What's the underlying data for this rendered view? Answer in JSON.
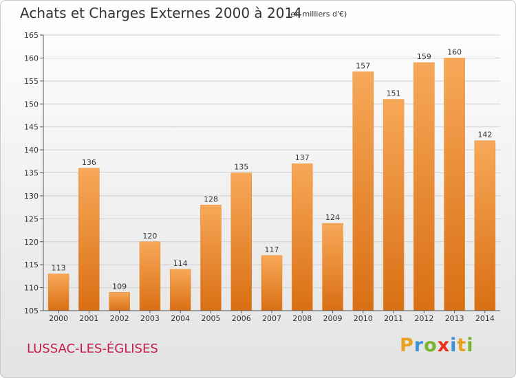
{
  "header": {
    "title": "Achats et Charges Externes 2000 à 2014",
    "subtitle": "(en milliers d'€)"
  },
  "footer": {
    "commune": "LUSSAC-LES-ÉGLISES",
    "logo_letters": [
      "P",
      "r",
      "o",
      "x",
      "i",
      "t",
      "i"
    ],
    "logo_colors": [
      "#e8a020",
      "#3d8fd6",
      "#7ab32e",
      "#e8301c",
      "#3d8fd6",
      "#e8a020",
      "#7ab32e"
    ]
  },
  "chart_data": {
    "type": "bar",
    "title": "Achats et Charges Externes 2000 à 2014",
    "subtitle": "(en milliers d'€)",
    "categories": [
      "2000",
      "2001",
      "2002",
      "2003",
      "2004",
      "2005",
      "2006",
      "2007",
      "2008",
      "2009",
      "2010",
      "2011",
      "2012",
      "2013",
      "2014"
    ],
    "values": [
      113,
      136,
      109,
      120,
      114,
      128,
      135,
      117,
      137,
      124,
      157,
      151,
      159,
      160,
      142
    ],
    "ylim": [
      105,
      165
    ],
    "yticks": [
      105,
      110,
      115,
      120,
      125,
      130,
      135,
      140,
      145,
      150,
      155,
      160,
      165
    ],
    "grid": true,
    "colors": {
      "bar_light": "#f7a858",
      "bar_dark": "#d96f14",
      "grid": "#cfcfcf"
    }
  }
}
